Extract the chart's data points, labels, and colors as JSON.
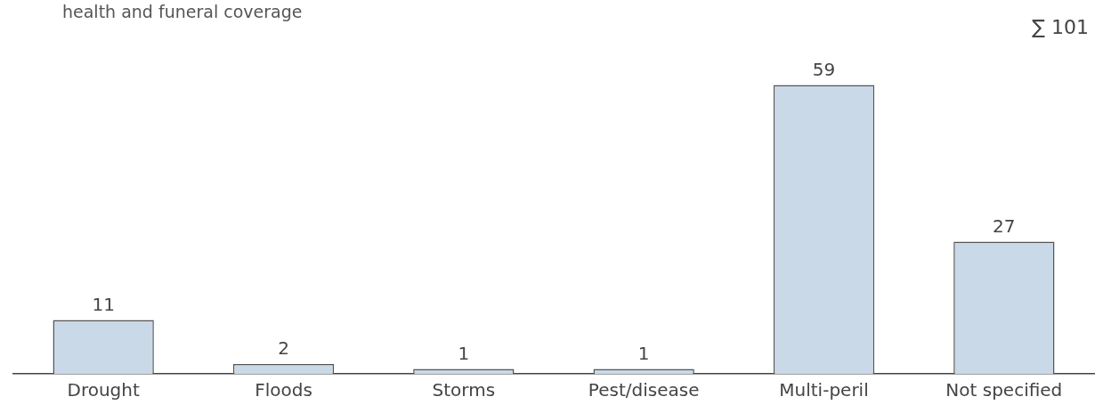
{
  "chart_data": {
    "type": "bar",
    "title": "health and funeral coverage",
    "annotations": [
      "∑ 101"
    ],
    "categories": [
      "Drought",
      "Floods",
      "Storms",
      "Pest/disease",
      "Multi-peril",
      "Not specified"
    ],
    "values": [
      11,
      2,
      1,
      1,
      59,
      27
    ],
    "color": "#c9d9e8",
    "data_labels": true,
    "grid": false,
    "legend": false,
    "tick_labels": "x"
  }
}
